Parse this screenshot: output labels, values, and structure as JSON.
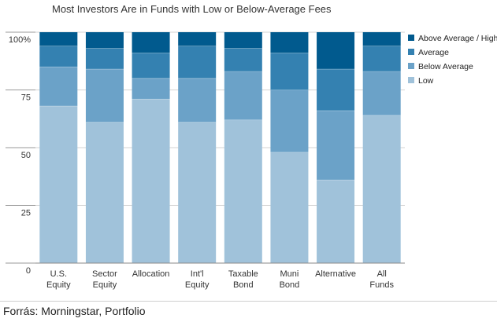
{
  "title": "Most Investors Are in Funds with Low or Below-Average Fees",
  "source": "Forrás: Morningstar, Portfolio",
  "colors": {
    "Low": "#a0c2da",
    "Below Average": "#6ba2c8",
    "Average": "#3481b1",
    "Above Average / High": "#015a8e"
  },
  "chart_data": {
    "type": "bar",
    "stacked": true,
    "categories": [
      [
        "U.S.",
        "Equity"
      ],
      [
        "Sector",
        "Equity"
      ],
      [
        "Allocation"
      ],
      [
        "Int'l",
        "Equity"
      ],
      [
        "Taxable",
        "Bond"
      ],
      [
        "Muni",
        "Bond"
      ],
      [
        "Alternative"
      ],
      [
        "All",
        "Funds"
      ]
    ],
    "series": [
      {
        "name": "Low",
        "values": [
          68,
          61,
          71,
          61,
          62,
          48,
          36,
          64
        ]
      },
      {
        "name": "Below Average",
        "values": [
          17,
          23,
          9,
          19,
          21,
          27,
          30,
          19
        ]
      },
      {
        "name": "Average",
        "values": [
          9,
          9,
          11,
          14,
          10,
          16,
          18,
          11
        ]
      },
      {
        "name": "Above Average / High",
        "values": [
          6,
          7,
          9,
          6,
          7,
          9,
          16,
          6
        ]
      }
    ],
    "yticks": [
      "0",
      "25",
      "50",
      "75",
      "100%"
    ],
    "ylim": [
      0,
      100
    ],
    "grid": true,
    "legend_position": "top-right",
    "legend_order": [
      "Above Average / High",
      "Average",
      "Below Average",
      "Low"
    ]
  }
}
